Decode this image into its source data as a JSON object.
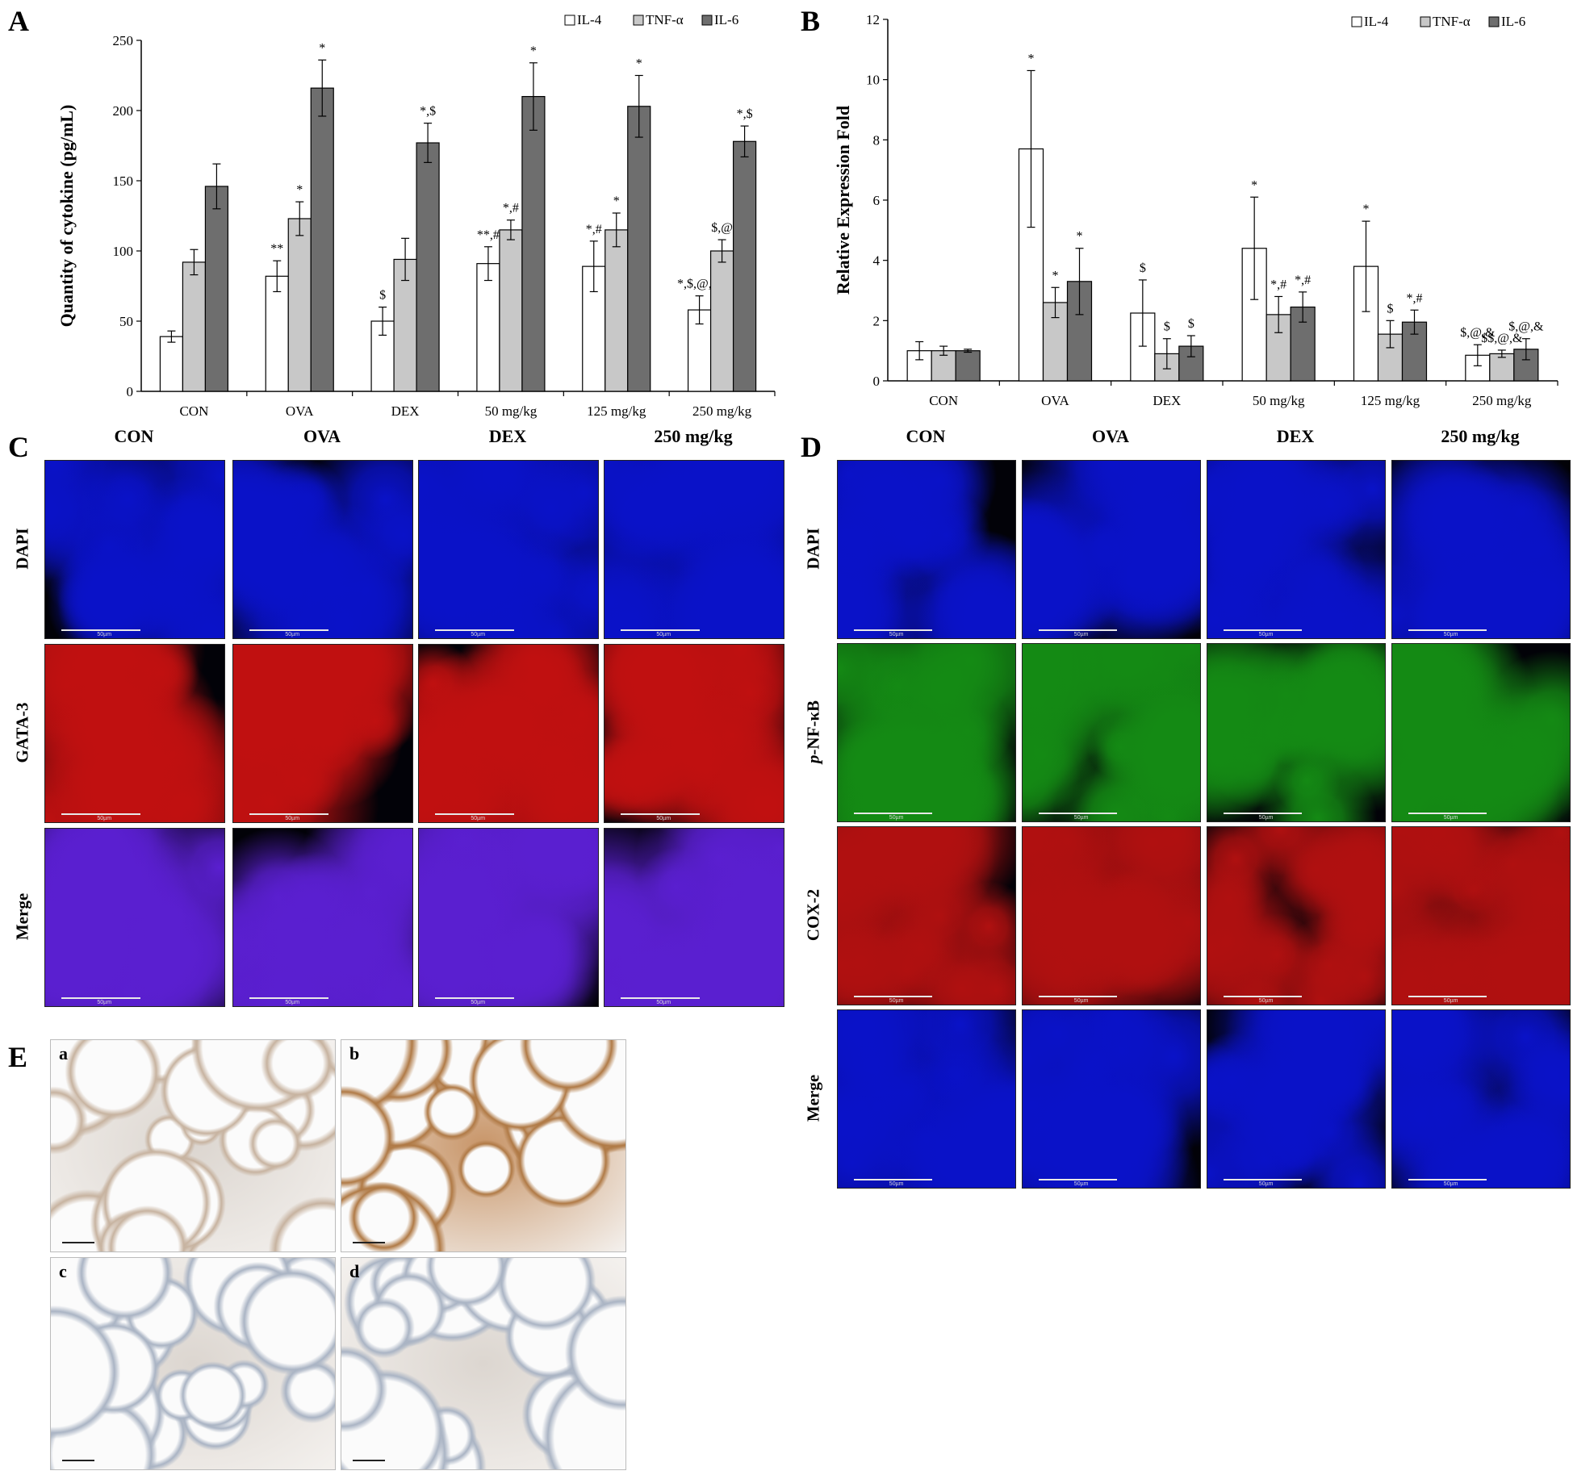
{
  "panels": {
    "A": "A",
    "B": "B",
    "C": "C",
    "D": "D",
    "E": "E"
  },
  "chart_data": [
    {
      "panel": "A",
      "type": "bar",
      "title": "",
      "xlabel": "",
      "ylabel": "Quantity of cytokine (pg/mL)",
      "ylim": [
        0,
        250
      ],
      "yticks": [
        "0",
        "50",
        "100",
        "150",
        "200",
        "250"
      ],
      "categories": [
        "CON",
        "OVA",
        "DEX",
        "50 mg/kg",
        "125 mg/kg",
        "250 mg/kg"
      ],
      "legend_position": "top-right",
      "series": [
        {
          "name": "IL-4",
          "color": "#ffffff",
          "values": [
            39,
            82,
            50,
            91,
            89,
            58
          ],
          "errors": [
            4,
            11,
            10,
            12,
            18,
            10
          ],
          "annotations": [
            "",
            "**",
            "$",
            "**,#",
            "*,#",
            "*,$,@,&"
          ]
        },
        {
          "name": "TNF-α",
          "color": "#c8c8c8",
          "values": [
            92,
            123,
            94,
            115,
            115,
            100
          ],
          "errors": [
            9,
            12,
            15,
            7,
            12,
            8
          ],
          "annotations": [
            "",
            "*",
            "",
            "*,#",
            "*",
            "$,@"
          ]
        },
        {
          "name": "IL-6",
          "color": "#6e6e6e",
          "values": [
            146,
            216,
            177,
            210,
            203,
            178
          ],
          "errors": [
            16,
            20,
            14,
            24,
            22,
            11
          ],
          "annotations": [
            "",
            "*",
            "*,$",
            "*",
            "*",
            "*,$"
          ]
        }
      ]
    },
    {
      "panel": "B",
      "type": "bar",
      "title": "",
      "xlabel": "",
      "ylabel": "Relative Expression Fold",
      "ylim": [
        0,
        12
      ],
      "yticks": [
        "0",
        "2",
        "4",
        "6",
        "8",
        "10",
        "12"
      ],
      "categories": [
        "CON",
        "OVA",
        "DEX",
        "50 mg/kg",
        "125 mg/kg",
        "250 mg/kg"
      ],
      "legend_position": "top-right",
      "series": [
        {
          "name": "IL-4",
          "color": "#ffffff",
          "values": [
            1.0,
            7.7,
            2.25,
            4.4,
            3.8,
            0.85
          ],
          "errors": [
            0.3,
            2.6,
            1.1,
            1.7,
            1.5,
            0.35
          ],
          "annotations": [
            "",
            "*",
            "$",
            "*",
            "*",
            "$,@,&"
          ]
        },
        {
          "name": "TNF-α",
          "color": "#c8c8c8",
          "values": [
            1.0,
            2.6,
            0.9,
            2.2,
            1.55,
            0.9
          ],
          "errors": [
            0.15,
            0.5,
            0.5,
            0.6,
            0.45,
            0.12
          ],
          "annotations": [
            "",
            "*",
            "$",
            "*,#",
            "$",
            "$$,@,&"
          ]
        },
        {
          "name": "IL-6",
          "color": "#6e6e6e",
          "values": [
            1.0,
            3.3,
            1.15,
            2.45,
            1.95,
            1.05
          ],
          "errors": [
            0.05,
            1.1,
            0.35,
            0.5,
            0.4,
            0.35
          ],
          "annotations": [
            "",
            "*",
            "$",
            "*,#",
            "*,#",
            "$,@,&"
          ]
        }
      ]
    }
  ],
  "panelC": {
    "columns": [
      "CON",
      "OVA",
      "DEX",
      "250 mg/kg"
    ],
    "rows": [
      "DAPI",
      "GATA-3",
      "Merge"
    ],
    "scalebar": "50µm"
  },
  "panelD": {
    "columns": [
      "CON",
      "OVA",
      "DEX",
      "250 mg/kg"
    ],
    "rows_italic_prefix": "p",
    "rows": [
      "DAPI",
      "-NF-κB",
      "COX-2",
      "Merge"
    ],
    "scalebar": "50µm"
  },
  "panelE": {
    "tags": [
      "a",
      "b",
      "c",
      "d"
    ]
  },
  "colors": {
    "dapi": "#0a12c8",
    "gata3": "#c01010",
    "merge": "#5a1fd0",
    "pnfkb": "#148a14",
    "cox2": "#b01010",
    "ihc_bg": "#f4f1ee",
    "ihc_stain": "#b88a5c"
  }
}
